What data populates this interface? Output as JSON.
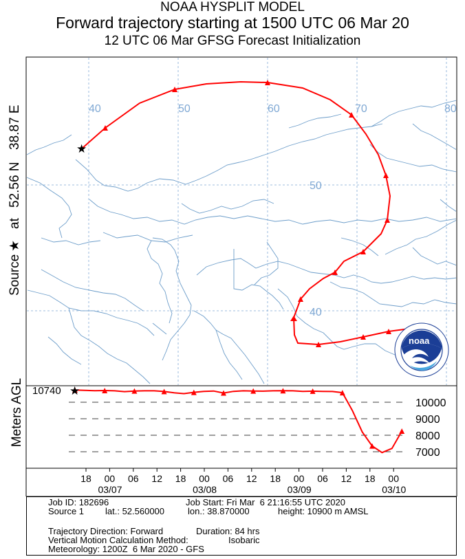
{
  "header": {
    "model": "NOAA HYSPLIT MODEL",
    "trajectory": "Forward trajectory starting at 1500 UTC 06 Mar 20",
    "init": "12 UTC 06 Mar    GFSG  Forecast Initialization"
  },
  "side_label": {
    "source": "Source",
    "at": "at",
    "lat": "52.56 N",
    "lon": "38.87 E"
  },
  "colors": {
    "trajectory": "#ff0000",
    "grid": "#7fa8d4",
    "map_lines": "#6b9cc9",
    "noaa_blue": "#1b3e96"
  },
  "map": {
    "lon_labels": [
      "40",
      "50",
      "60",
      "70",
      "80"
    ],
    "lat_labels": [
      "50",
      "40"
    ]
  },
  "chart_data": {
    "type": "line",
    "title": "",
    "ylabel": "Meters AGL",
    "start_height_label": "10740",
    "y_ticks": [
      "10000",
      "9000",
      "8000",
      "7000"
    ],
    "x_hour_ticks": [
      "18",
      "00",
      "06",
      "12",
      "18",
      "00",
      "06",
      "12",
      "18",
      "00",
      "06",
      "12",
      "18",
      "00"
    ],
    "x_date_ticks": [
      "03/07",
      "03/08",
      "03/09",
      "03/10"
    ],
    "series": [
      {
        "values": [
          10740,
          10720,
          10700,
          10710,
          10690,
          10640,
          10680,
          10690,
          10690,
          10650,
          10570,
          10520,
          10600,
          10660,
          10680,
          10560,
          10660,
          10690,
          10680,
          10670,
          10690,
          10700,
          10690,
          10660,
          10670,
          10660,
          10650,
          10580,
          9500,
          8200,
          7350,
          6950,
          7200,
          8250
        ]
      }
    ]
  },
  "info": {
    "job_id": "Job ID: 182696",
    "job_start": "Job Start: Fri Mar  6 21:16:55 UTC 2020",
    "source_name": "Source 1",
    "source_lat": "lat.: 52.560000",
    "source_lon": "lon.: 38.870000",
    "source_height": "height: 10900 m AMSL",
    "direction": "Trajectory Direction: Forward",
    "duration": "Duration: 84 hrs",
    "vertical": "Vertical Motion Calculation Method:",
    "vertical_value": "Isobaric",
    "meteorology": "Meteorology: 1200Z  6 Mar 2020 - GFS"
  }
}
